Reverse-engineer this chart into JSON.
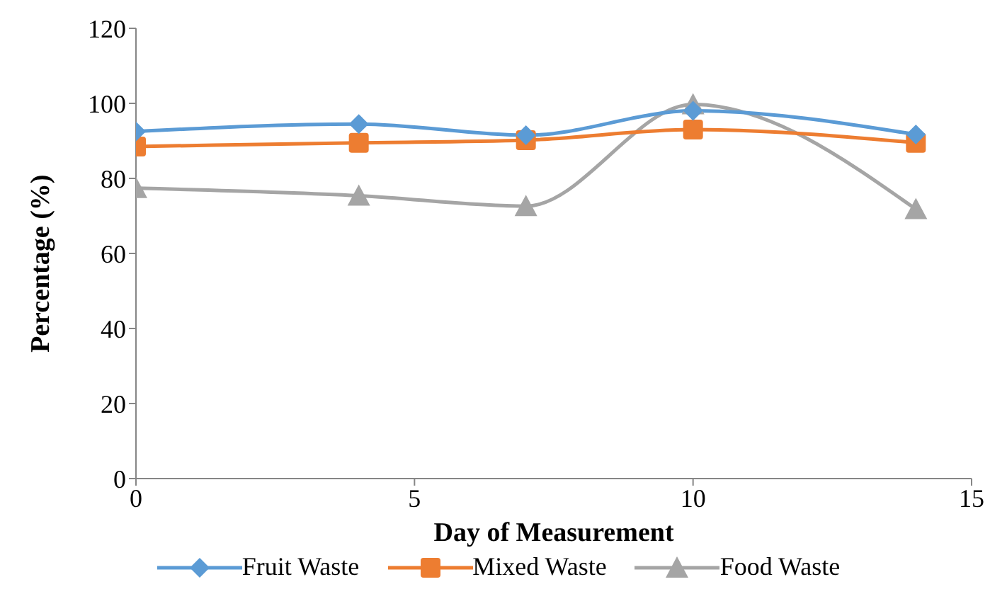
{
  "chart_data": {
    "type": "line",
    "xlabel": "Day of Measurement",
    "ylabel": "Percentage (%)",
    "x": [
      0,
      4,
      7,
      10,
      14
    ],
    "xlim": [
      0,
      15
    ],
    "xticks": [
      0,
      5,
      10,
      15
    ],
    "ylim": [
      0,
      120
    ],
    "yticks": [
      0,
      20,
      40,
      60,
      80,
      100,
      120
    ],
    "grid": false,
    "legend": "bottom",
    "series": [
      {
        "name": "Fruit Waste",
        "color": "#5b9bd5",
        "marker": "diamond",
        "values": [
          92.5,
          94.5,
          91.5,
          98,
          91.7
        ]
      },
      {
        "name": "Mixed Waste",
        "color": "#ed7d31",
        "marker": "square",
        "values": [
          88.5,
          89.5,
          90.2,
          93,
          89.5
        ]
      },
      {
        "name": "Food Waste",
        "color": "#a5a5a5",
        "marker": "triangle",
        "values": [
          77.4,
          75.4,
          72.6,
          99.7,
          71.8
        ]
      }
    ]
  }
}
